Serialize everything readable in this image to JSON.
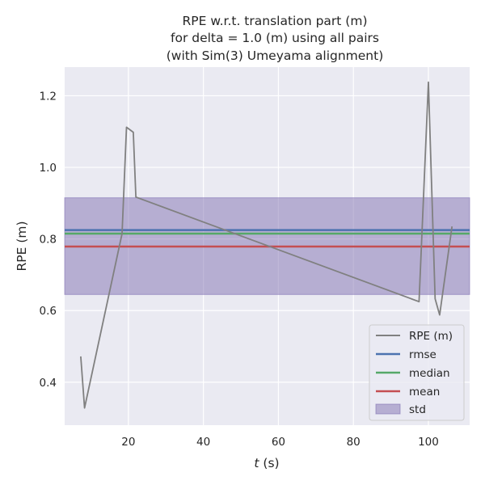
{
  "chart_data": {
    "type": "line",
    "title_lines": [
      "RPE w.r.t. translation part (m)",
      "for delta = 1.0 (m) using all pairs",
      "(with Sim(3) Umeyama alignment)"
    ],
    "xlabel_var": "t",
    "xlabel_unit": " (s)",
    "ylabel": "RPE (m)",
    "xlim": [
      3,
      111
    ],
    "ylim": [
      0.28,
      1.28
    ],
    "x_ticks": [
      20,
      40,
      60,
      80,
      100
    ],
    "y_ticks": [
      0.4,
      0.6,
      0.8,
      1.0,
      1.2
    ],
    "x_tick_labels": [
      "20",
      "40",
      "60",
      "80",
      "100"
    ],
    "y_tick_labels": [
      "0.4",
      "0.6",
      "0.8",
      "1.0",
      "1.2"
    ],
    "grid": true,
    "legend_position": "lower-right",
    "series": [
      {
        "name": "RPE (m)",
        "color": "#808080",
        "x": [
          7.3,
          8.3,
          18.3,
          19.5,
          21.3,
          22.0,
          97.5,
          100.0,
          101.8,
          103.0,
          106.3
        ],
        "y": [
          0.472,
          0.328,
          0.815,
          1.112,
          1.098,
          0.917,
          0.625,
          1.238,
          0.633,
          0.588,
          0.835
        ]
      }
    ],
    "stats": {
      "rmse": {
        "name": "rmse",
        "value": 0.825,
        "color": "#4c72b0"
      },
      "median": {
        "name": "median",
        "value": 0.815,
        "color": "#55a868"
      },
      "mean": {
        "name": "mean",
        "value": 0.779,
        "color": "#c44e52"
      },
      "std": {
        "name": "std",
        "lower": 0.645,
        "upper": 0.915,
        "color": "#8172b2"
      }
    },
    "colors": {
      "plot_background": "#eaeaf2",
      "grid": "#ffffff"
    }
  }
}
